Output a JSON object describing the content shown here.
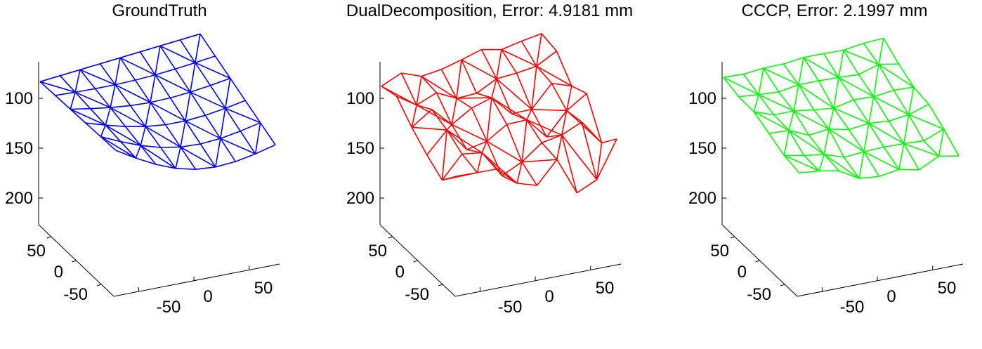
{
  "chart_data": [
    {
      "type": "surface-mesh",
      "title": "GroundTruth",
      "color": "#0000ff",
      "zticks": [
        "100",
        "150",
        "200"
      ],
      "yticks": [
        "50",
        "0",
        "-50"
      ],
      "xticks": [
        "-50",
        "0",
        "50"
      ],
      "mesh": {
        "rows": 6,
        "cols": 9,
        "corner_z": {
          "back_left": 158,
          "back_right": 179,
          "front_left": 130,
          "front_right": 130
        },
        "sag": 18,
        "noise": 0
      }
    },
    {
      "type": "surface-mesh",
      "title": "DualDecomposition, Error: 4.9181 mm",
      "color": "#ff0000",
      "zticks": [
        "100",
        "150",
        "200"
      ],
      "yticks": [
        "50",
        "0",
        "-50"
      ],
      "xticks": [
        "-50",
        "0",
        "50"
      ],
      "mesh": {
        "rows": 6,
        "cols": 9,
        "corner_z": {
          "back_left": 157,
          "back_right": 178,
          "front_left": 112,
          "front_right": 128
        },
        "sag": 14,
        "noise": 9
      }
    },
    {
      "type": "surface-mesh",
      "title": "CCCP, Error: 2.1997 mm",
      "color": "#00ff00",
      "zticks": [
        "100",
        "150",
        "200"
      ],
      "yticks": [
        "50",
        "0",
        "-50"
      ],
      "xticks": [
        "-50",
        "0",
        "50"
      ],
      "mesh": {
        "rows": 6,
        "cols": 9,
        "corner_z": {
          "back_left": 160,
          "back_right": 176,
          "front_left": 120,
          "front_right": 128
        },
        "sag": 15,
        "noise": 3
      }
    }
  ]
}
